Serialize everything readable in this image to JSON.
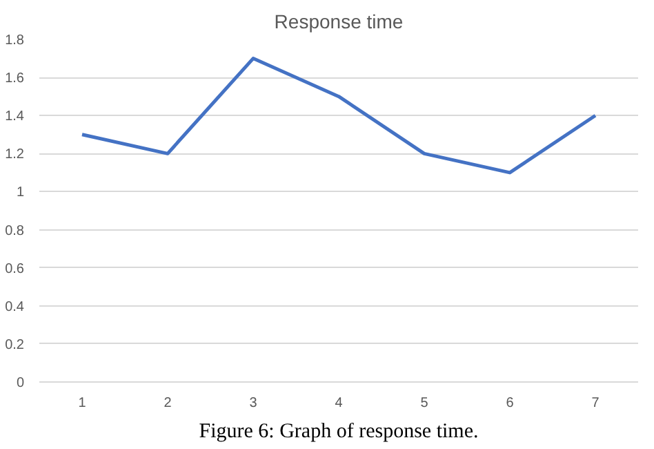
{
  "chart_data": {
    "type": "line",
    "title": "Response time",
    "categories": [
      "1",
      "2",
      "3",
      "4",
      "5",
      "6",
      "7"
    ],
    "series": [
      {
        "color": "#4472c4",
        "values": [
          1.3,
          1.2,
          1.7,
          1.5,
          1.2,
          1.1,
          1.4
        ]
      }
    ],
    "ylim": [
      0,
      1.8
    ],
    "yticks": [
      0,
      0.2,
      0.4,
      0.6,
      0.8,
      1,
      1.2,
      1.4,
      1.6,
      1.8
    ],
    "grid": "y",
    "marker": "none",
    "line_style": "solid",
    "annotations": [
      "Figure 6: Graph of response time."
    ]
  }
}
